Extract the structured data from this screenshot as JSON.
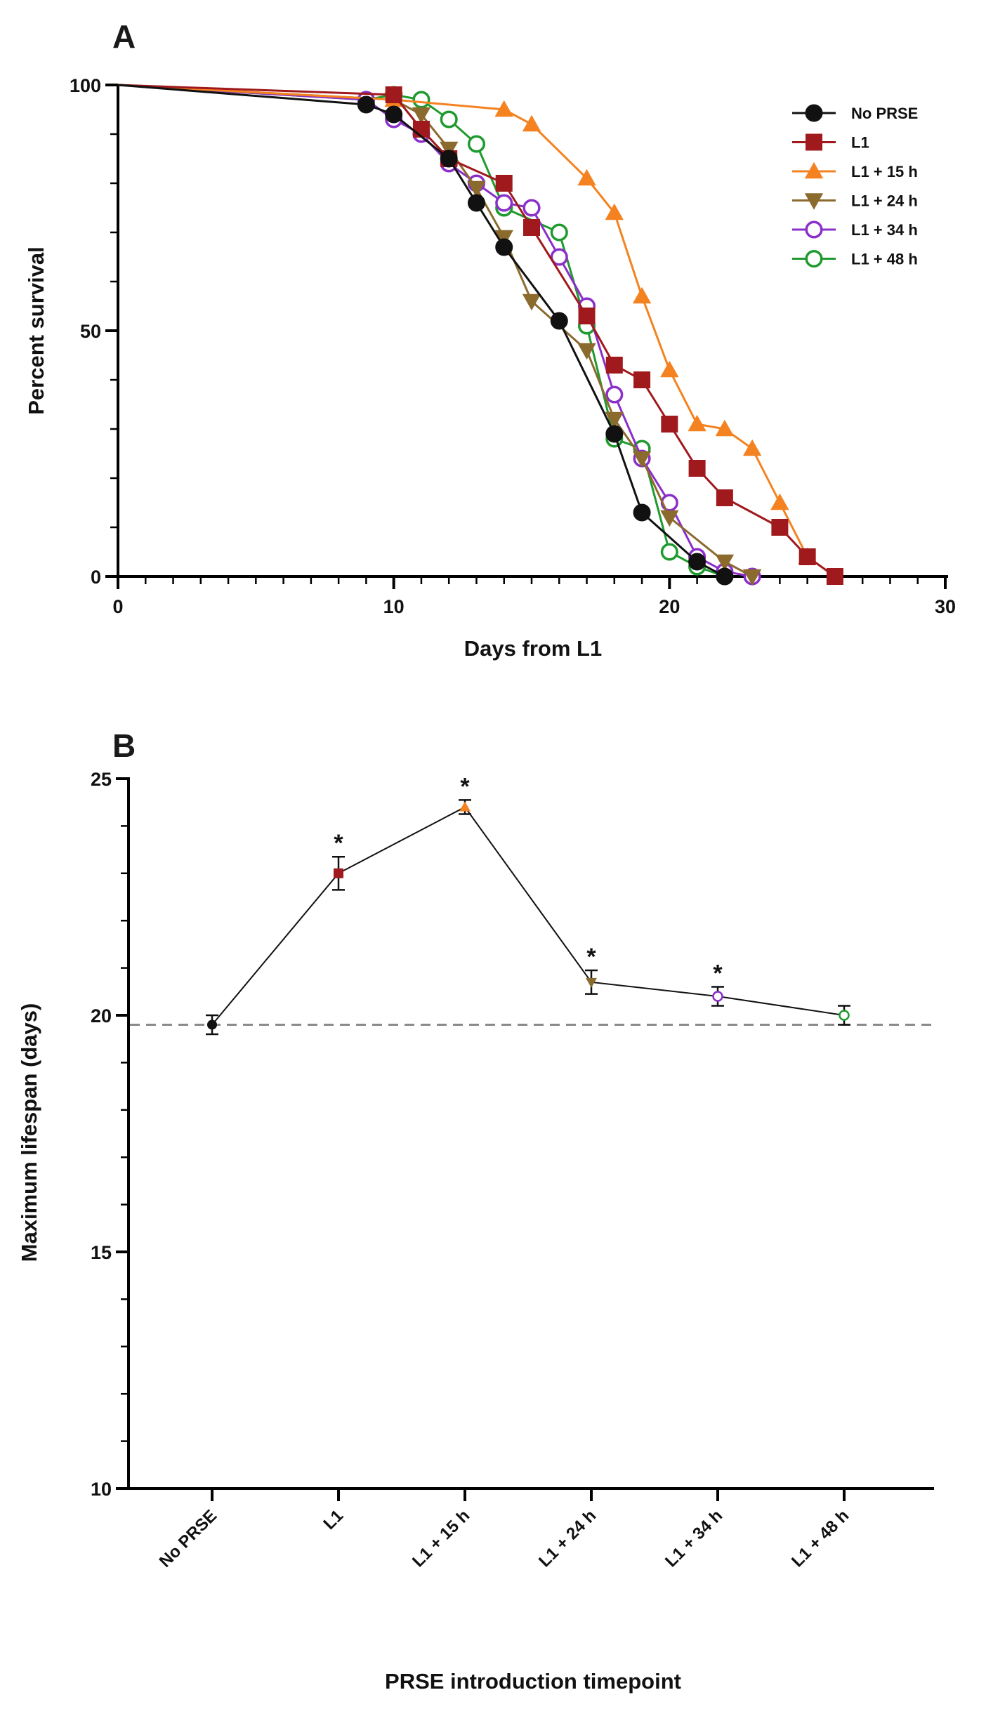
{
  "panelA": {
    "letter": "A",
    "chart_data": {
      "type": "line",
      "title": "",
      "xlabel": "Days from L1",
      "ylabel": "Percent survival",
      "xlim": [
        0,
        30
      ],
      "ylim": [
        0,
        100
      ],
      "xticks": [
        "0",
        "10",
        "20",
        "30"
      ],
      "yticks": [
        "0",
        "50",
        "100"
      ],
      "legend_position": "top-right",
      "series": [
        {
          "name": "No PRSE",
          "color": "#111111",
          "marker": "circle-filled",
          "x": [
            0,
            9,
            10,
            12,
            13,
            14,
            16,
            18,
            19,
            21,
            22
          ],
          "y": [
            100,
            96,
            94,
            85,
            76,
            67,
            52,
            29,
            13,
            3,
            0
          ]
        },
        {
          "name": "L1",
          "color": "#a0191c",
          "marker": "square",
          "x": [
            0,
            10,
            11,
            12,
            14,
            15,
            17,
            18,
            19,
            20,
            21,
            22,
            24,
            25,
            26
          ],
          "y": [
            100,
            98,
            91,
            85,
            80,
            71,
            53,
            43,
            40,
            31,
            22,
            16,
            10,
            4,
            0
          ]
        },
        {
          "name": "L1 + 15 h",
          "color": "#f58220",
          "marker": "triangle-up",
          "x": [
            0,
            10,
            14,
            15,
            17,
            18,
            19,
            20,
            21,
            22,
            23,
            24,
            25
          ],
          "y": [
            100,
            97,
            95,
            92,
            81,
            74,
            57,
            42,
            31,
            30,
            26,
            15,
            4
          ]
        },
        {
          "name": "L1 + 24 h",
          "color": "#8b6a2e",
          "marker": "triangle-down",
          "x": [
            0,
            10,
            11,
            12,
            13,
            14,
            15,
            17,
            18,
            19,
            20,
            22,
            23
          ],
          "y": [
            100,
            97,
            94,
            87,
            79,
            69,
            56,
            46,
            32,
            24,
            12,
            3,
            0
          ]
        },
        {
          "name": "L1 + 34 h",
          "color": "#8b2fc9",
          "marker": "circle-open",
          "x": [
            0,
            9,
            10,
            11,
            12,
            13,
            14,
            15,
            16,
            17,
            18,
            19,
            20,
            21,
            22,
            23
          ],
          "y": [
            100,
            97,
            93,
            90,
            84,
            80,
            76,
            75,
            65,
            55,
            37,
            24,
            15,
            4,
            1,
            0
          ]
        },
        {
          "name": "L1 + 48 h",
          "color": "#1f9a2e",
          "marker": "circle-open",
          "x": [
            0,
            9,
            10,
            11,
            12,
            13,
            14,
            16,
            17,
            18,
            19,
            20,
            21,
            22
          ],
          "y": [
            100,
            97,
            98,
            97,
            93,
            88,
            75,
            70,
            51,
            28,
            26,
            5,
            2,
            0
          ]
        }
      ]
    }
  },
  "panelB": {
    "letter": "B",
    "chart_data": {
      "type": "line",
      "title": "",
      "xlabel": "PRSE introduction timepoint",
      "ylabel": "Maximum lifespan (days)",
      "ylim": [
        10,
        25
      ],
      "yticks": [
        "10",
        "15",
        "20",
        "25"
      ],
      "categories": [
        "No PRSE",
        "L1",
        "L1 + 15 h",
        "L1 + 24 h",
        "L1 + 34 h",
        "L1 + 48 h"
      ],
      "values": [
        19.8,
        23.0,
        24.4,
        20.7,
        20.4,
        20.0
      ],
      "errors": [
        0.2,
        0.35,
        0.15,
        0.25,
        0.2,
        0.2
      ],
      "colors": [
        "#111111",
        "#a0191c",
        "#f58220",
        "#8b6a2e",
        "#8b2fc9",
        "#1f9a2e"
      ],
      "significance": [
        "",
        "*",
        "*",
        "*",
        "*",
        ""
      ],
      "reference_line": 19.8
    }
  }
}
